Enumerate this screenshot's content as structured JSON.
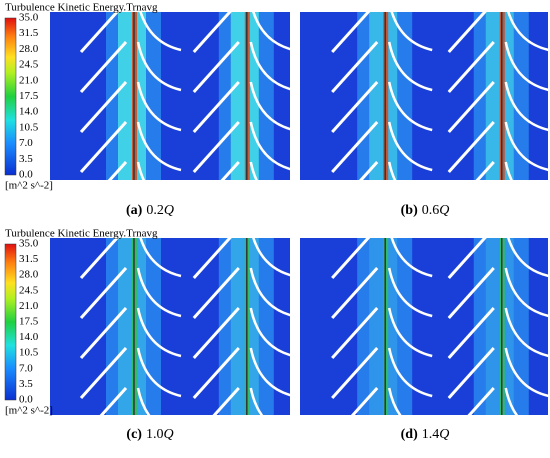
{
  "colorbars": [
    {
      "title": "Turbulence Kinetic Energy.Trnavg",
      "ticks": [
        "35.0",
        "31.5",
        "28.0",
        "24.5",
        "21.0",
        "17.5",
        "14.0",
        "10.5",
        "7.0",
        "3.5",
        "0.0"
      ],
      "unit": "[m^2 s^-2]"
    },
    {
      "title": "Turbulence Kinetic Energy.Trnavg",
      "ticks": [
        "35.0",
        "31.5",
        "28.0",
        "24.5",
        "21.0",
        "17.5",
        "14.0",
        "10.5",
        "7.0",
        "3.5",
        "0.0"
      ],
      "unit": "[m^2 s^-2]"
    }
  ],
  "panels": [
    {
      "letter": "(a)",
      "value": "0.2",
      "variable": "Q"
    },
    {
      "letter": "(b)",
      "value": "0.6",
      "variable": "Q"
    },
    {
      "letter": "(c)",
      "value": "1.0",
      "variable": "Q"
    },
    {
      "letter": "(d)",
      "value": "1.4",
      "variable": "Q"
    }
  ]
}
